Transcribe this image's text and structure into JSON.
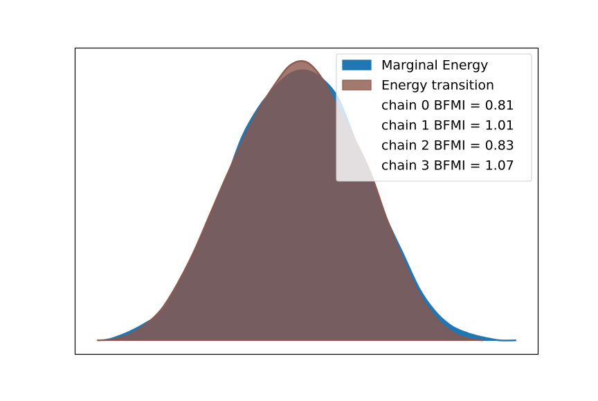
{
  "chart_data": {
    "type": "area",
    "title": "",
    "xlabel": "",
    "ylabel": "",
    "x_ticks_visible": false,
    "y_ticks_visible": false,
    "grid": false,
    "legend_position": "top-right",
    "series": [
      {
        "name": "Marginal Energy",
        "color": "#1f77b4",
        "x": [
          -2.9,
          -2.75,
          -2.5,
          -2.25,
          -2.0,
          -1.75,
          -1.5,
          -1.25,
          -1.0,
          -0.75,
          -0.5,
          -0.25,
          0.0,
          0.25,
          0.5,
          0.75,
          1.0,
          1.25,
          1.5,
          1.75,
          2.0,
          2.25,
          2.5,
          2.75,
          3.0,
          3.25,
          3.5
        ],
        "y": [
          0.0,
          0.008,
          0.03,
          0.06,
          0.1,
          0.19,
          0.3,
          0.43,
          0.56,
          0.71,
          0.81,
          0.88,
          0.93,
          0.94,
          0.91,
          0.84,
          0.7,
          0.57,
          0.42,
          0.3,
          0.18,
          0.1,
          0.05,
          0.025,
          0.01,
          0.0,
          0.0
        ]
      },
      {
        "name": "Energy transition",
        "color": "#8c564b",
        "x": [
          -3.0,
          -2.75,
          -2.5,
          -2.25,
          -2.0,
          -1.75,
          -1.5,
          -1.25,
          -1.0,
          -0.75,
          -0.5,
          -0.25,
          0.0,
          0.25,
          0.5,
          0.75,
          1.0,
          1.25,
          1.5,
          1.75,
          2.0,
          2.25,
          2.5,
          2.75,
          3.0
        ],
        "y": [
          0.0,
          0.004,
          0.02,
          0.055,
          0.11,
          0.2,
          0.31,
          0.44,
          0.57,
          0.69,
          0.8,
          0.89,
          0.96,
          0.97,
          0.91,
          0.8,
          0.7,
          0.58,
          0.42,
          0.28,
          0.16,
          0.08,
          0.03,
          0.006,
          0.0
        ]
      }
    ],
    "xlim": [
      -3.35,
      3.85
    ],
    "ylim": [
      -0.05,
      1.02
    ],
    "legend": {
      "entries": [
        {
          "label": "Marginal Energy",
          "swatch": "#1f77b4"
        },
        {
          "label": "Energy transition",
          "swatch": "#8c564b"
        },
        {
          "label": "chain  0 BFMI = 0.81",
          "swatch": null
        },
        {
          "label": "chain  1 BFMI = 1.01",
          "swatch": null
        },
        {
          "label": "chain  2 BFMI = 0.83",
          "swatch": null
        },
        {
          "label": "chain  3 BFMI = 1.07",
          "swatch": null
        }
      ]
    }
  }
}
